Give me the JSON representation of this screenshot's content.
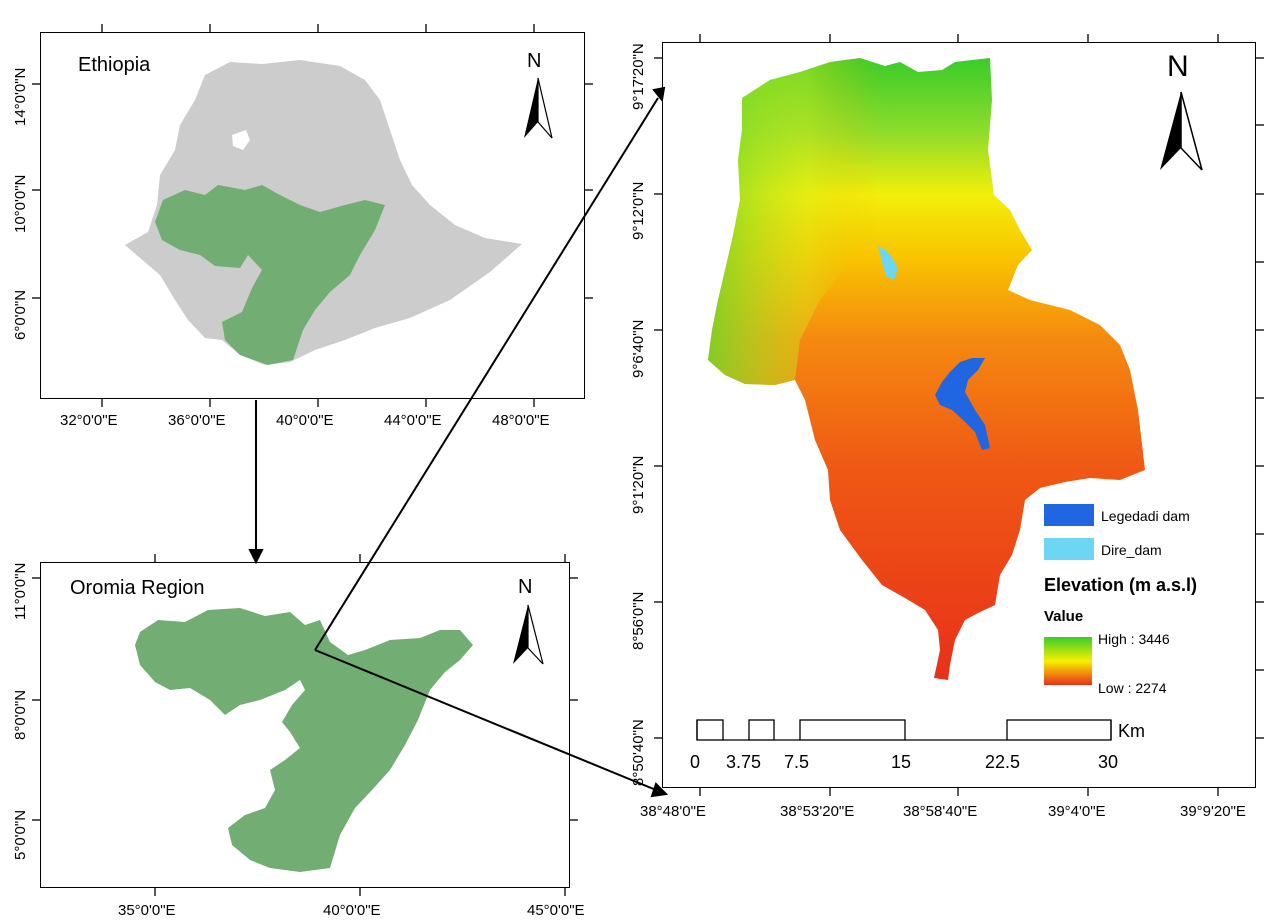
{
  "ethiopia_map": {
    "title": "Ethiopia",
    "north": "N",
    "x_ticks": [
      "32°0'0\"E",
      "36°0'0\"E",
      "40°0'0\"E",
      "44°0'0\"E",
      "48°0'0\"E"
    ],
    "y_ticks": [
      "14°0'0\"N",
      "10°0'0\"N",
      "6°0'0\"N"
    ]
  },
  "oromia_map": {
    "title": "Oromia Region",
    "north": "N",
    "x_ticks": [
      "35°0'0\"E",
      "40°0'0\"E",
      "45°0'0\"E"
    ],
    "y_ticks": [
      "11°0'0\"N",
      "8°0'0\"N",
      "5°0'0\"N"
    ]
  },
  "study_area_map": {
    "north": "N",
    "x_ticks": [
      "38°48'0\"E",
      "38°53'20\"E",
      "38°58'40\"E",
      "39°4'0\"E",
      "39°9'20\"E"
    ],
    "y_ticks": [
      "9°17'20\"N",
      "9°12'0\"N",
      "9°6'40\"N",
      "9°1'20\"N",
      "8°56'0\"N",
      "8°50'40\"N"
    ],
    "legend": {
      "legedadi": "Legedadi dam",
      "dire": "Dire_dam",
      "elevation_title": "Elevation (m a.s.l)",
      "value_label": "Value",
      "high": "High : 3446",
      "low": "Low : 2274"
    },
    "scale_bar": {
      "unit": "Km",
      "labels": [
        "0",
        "3.75",
        "7.5",
        "15",
        "22.5",
        "30"
      ]
    }
  },
  "colors": {
    "ethiopia_fill": "#cccccc",
    "oromia_fill": "#72ae73",
    "legedadi_fill": "#1f66e0",
    "dire_fill": "#6dd6f4",
    "elev_high": "#39cc2a",
    "elev_mid": "#f8f000",
    "elev_low": "#e83218"
  }
}
